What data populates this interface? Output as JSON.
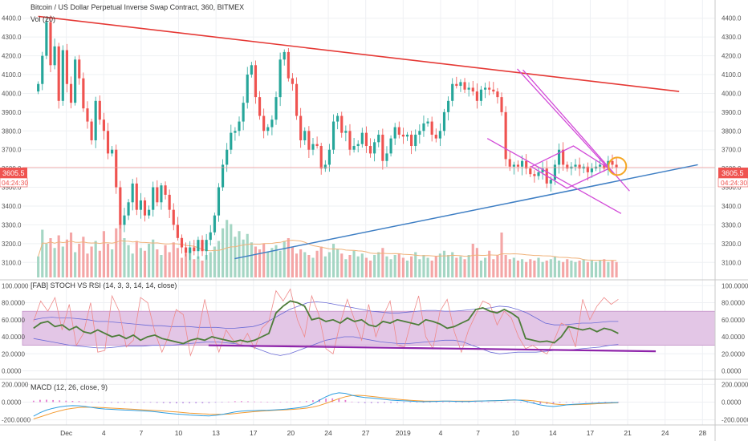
{
  "header": {
    "title": "Bitcoin / US Dollar Perpetual Inverse Swap Contract, 360, BITMEX",
    "volume_label": "Vol (20)"
  },
  "price_badge": {
    "price": "3605.5",
    "countdown": "04:24:30",
    "color": "#ef5350"
  },
  "colors": {
    "up": "#26a69a",
    "down": "#ef5350",
    "vol_up": "#a5d6c4",
    "vol_down": "#f4a6a6",
    "resistance": "#e53935",
    "support": "#3f7fc4",
    "pattern": "#d24bd8",
    "stoch_line": "#4e7d3a",
    "rsi_line": "#ef8a8a",
    "band_line": "#6b6bd6",
    "band_fill": "#e3c6e6",
    "stoch_support": "#8e24aa",
    "macd_line": "#2f9ee0",
    "signal_line": "#f39c34",
    "highlight": "#f5a623"
  },
  "x_axis": {
    "labels": [
      {
        "t": 3,
        "label": "Dec"
      },
      {
        "t": 7,
        "label": "4"
      },
      {
        "t": 11,
        "label": "7"
      },
      {
        "t": 15,
        "label": "10"
      },
      {
        "t": 19,
        "label": "13"
      },
      {
        "t": 23,
        "label": "17"
      },
      {
        "t": 27,
        "label": "20"
      },
      {
        "t": 31,
        "label": "24"
      },
      {
        "t": 35,
        "label": "27"
      },
      {
        "t": 39,
        "label": "2019"
      },
      {
        "t": 43,
        "label": "4"
      },
      {
        "t": 47,
        "label": "7"
      },
      {
        "t": 51,
        "label": "10"
      },
      {
        "t": 55,
        "label": "14"
      },
      {
        "t": 59,
        "label": "17"
      },
      {
        "t": 63,
        "label": "21"
      },
      {
        "t": 67,
        "label": "24"
      },
      {
        "t": 71,
        "label": "28"
      }
    ]
  },
  "chart_data": [
    {
      "id": "price",
      "type": "candlestick",
      "title": "Bitcoin / US Dollar Perpetual Inverse Swap Contract, 360, BITMEX",
      "ylim": [
        3020,
        4480
      ],
      "y_ticks": [
        3100,
        3200,
        3300,
        3400,
        3500,
        3600,
        3700,
        3800,
        3900,
        4000,
        4100,
        4200,
        4300,
        4400
      ],
      "y_tick_labels": [
        "3100.0",
        "3200.0",
        "3300.0",
        "3400.0",
        "3500.0",
        "3600.0",
        "3700.0",
        "3800.0",
        "3900.0",
        "4000.0",
        "4100.0",
        "4200.0",
        "4300.0",
        "4400.0"
      ],
      "closes": [
        4050,
        4200,
        4380,
        4150,
        4250,
        3960,
        4230,
        4050,
        3950,
        4180,
        4080,
        3920,
        3850,
        3750,
        3960,
        3860,
        3800,
        3680,
        3700,
        3500,
        3300,
        3350,
        3420,
        3520,
        3380,
        3430,
        3350,
        3380,
        3500,
        3420,
        3510,
        3460,
        3380,
        3300,
        3230,
        3180,
        3150,
        3180,
        3160,
        3220,
        3160,
        3220,
        3260,
        3350,
        3500,
        3620,
        3700,
        3790,
        3800,
        3850,
        3950,
        4100,
        4150,
        3980,
        3880,
        3800,
        3820,
        3860,
        3980,
        4180,
        4220,
        4080,
        4050,
        3880,
        3750,
        3800,
        3700,
        3730,
        3720,
        3600,
        3620,
        3700,
        3850,
        3880,
        3790,
        3800,
        3700,
        3720,
        3730,
        3790,
        3720,
        3680,
        3740,
        3780,
        3640,
        3680,
        3760,
        3820,
        3780,
        3770,
        3780,
        3720,
        3780,
        3800,
        3840,
        3850,
        3780,
        3760,
        3800,
        3900,
        3960,
        4050,
        4040,
        4060,
        4020,
        4030,
        4010,
        3960,
        4020,
        4030,
        4020,
        4010,
        3980,
        3900,
        3650,
        3610,
        3620,
        3610,
        3640,
        3600,
        3570,
        3560,
        3580,
        3600,
        3520,
        3540,
        3620,
        3700,
        3620,
        3600,
        3610,
        3620,
        3600,
        3610,
        3580,
        3600,
        3610,
        3620,
        3600,
        3640,
        3620,
        3605
      ],
      "volumes": [
        15,
        34,
        24,
        28,
        21,
        30,
        22,
        27,
        32,
        18,
        24,
        29,
        17,
        22,
        26,
        19,
        33,
        24,
        20,
        35,
        38,
        28,
        23,
        17,
        26,
        21,
        19,
        24,
        27,
        20,
        16,
        23,
        18,
        25,
        21,
        14,
        17,
        19,
        13,
        15,
        12,
        16,
        18,
        22,
        26,
        35,
        41,
        38,
        29,
        33,
        27,
        31,
        25,
        22,
        20,
        24,
        18,
        21,
        23,
        19,
        26,
        28,
        22,
        17,
        20,
        18,
        16,
        14,
        19,
        22,
        15,
        18,
        24,
        20,
        17,
        13,
        16,
        19,
        15,
        17,
        14,
        12,
        16,
        18,
        21,
        15,
        13,
        16,
        17,
        14,
        12,
        15,
        18,
        13,
        16,
        14,
        12,
        15,
        17,
        19,
        16,
        18,
        14,
        15,
        13,
        16,
        24,
        21,
        12,
        14,
        19,
        13,
        16,
        32,
        16,
        13,
        14,
        12,
        13,
        11,
        13,
        12,
        14,
        11,
        12,
        13,
        15,
        12,
        11,
        13,
        12,
        11,
        12,
        13,
        11,
        12,
        11,
        12,
        13,
        11,
        12,
        11
      ],
      "volume_scale_max": 40,
      "annotations": {
        "resistance_line": [
          {
            "t": 0,
            "y": 4410
          },
          {
            "t": 68.5,
            "y": 4010
          }
        ],
        "support_line": [
          {
            "t": 21,
            "y": 3120
          },
          {
            "t": 70.5,
            "y": 3620
          }
        ],
        "channel_upper": [
          {
            "t": 51.2,
            "y": 4130
          },
          {
            "t": 61.5,
            "y": 3570
          }
        ],
        "channel_lower": [
          {
            "t": 48,
            "y": 3760
          },
          {
            "t": 62.3,
            "y": 3360
          }
        ],
        "wedge_upper": [
          {
            "t": 51.8,
            "y": 4125
          },
          {
            "t": 63.2,
            "y": 3480
          }
        ],
        "rhombus": [
          {
            "t": 52.7,
            "y": 3610
          },
          {
            "t": 57.2,
            "y": 3720
          },
          {
            "t": 61,
            "y": 3600
          },
          {
            "t": 56.5,
            "y": 3495
          }
        ],
        "highlight_circle": {
          "t": 61.9,
          "y": 3612
        }
      }
    },
    {
      "id": "stoch_rsi",
      "type": "line",
      "title": "[FAB] STOCH VS RSI (14, 3, 3, 14, 14, close)",
      "ylim": [
        -7,
        104
      ],
      "y_ticks": [
        0,
        20,
        40,
        60,
        80,
        100
      ],
      "y_tick_labels": [
        "0.0000",
        "20.0000",
        "40.0000",
        "60.0000",
        "80.0000",
        "100.0000"
      ],
      "band": [
        30,
        70
      ],
      "series": [
        {
          "name": "stoch",
          "values": [
            50,
            56,
            58,
            52,
            54,
            48,
            52,
            46,
            44,
            48,
            44,
            40,
            42,
            38,
            42,
            36,
            40,
            42,
            38,
            36,
            34,
            32,
            36,
            38,
            36,
            40,
            38,
            36,
            34,
            36,
            34,
            36,
            40,
            44,
            68,
            76,
            82,
            80,
            76,
            60,
            62,
            58,
            60,
            56,
            62,
            58,
            60,
            54,
            52,
            58,
            56,
            60,
            58,
            56,
            54,
            60,
            58,
            55,
            50,
            52,
            56,
            60,
            72,
            74,
            70,
            68,
            72,
            68,
            62,
            38,
            36,
            34,
            35,
            33,
            40,
            52,
            50,
            48,
            50,
            46,
            50,
            48,
            44
          ]
        },
        {
          "name": "rsi",
          "values": [
            58,
            82,
            70,
            86,
            48,
            78,
            30,
            44,
            80,
            22,
            24,
            88,
            70,
            28,
            36,
            86,
            80,
            46,
            22,
            42,
            72,
            66,
            18,
            40,
            84,
            46,
            22,
            48,
            36,
            30,
            44,
            26,
            50,
            58,
            94,
            82,
            96,
            60,
            40,
            88,
            66,
            26,
            20,
            56,
            84,
            60,
            36,
            78,
            40,
            64,
            82,
            30,
            28,
            60,
            88,
            40,
            26,
            70,
            84,
            46,
            22,
            48,
            66,
            82,
            78,
            54,
            70,
            62,
            40,
            26,
            30,
            24,
            20,
            36,
            56,
            52,
            28,
            84,
            60,
            76,
            86,
            78,
            84
          ]
        },
        {
          "name": "upper_band",
          "values": [
            60,
            62,
            63,
            62,
            62,
            61,
            60,
            58,
            58,
            57,
            56,
            55,
            54,
            53,
            53,
            52,
            52,
            52,
            51,
            51,
            51,
            50,
            50,
            51,
            52,
            55,
            60,
            66,
            72,
            76,
            80,
            81,
            80,
            78,
            76,
            74,
            72,
            70,
            69,
            68,
            68,
            69,
            70,
            71,
            71,
            70,
            70,
            71,
            72,
            73,
            74,
            76,
            75,
            72,
            68,
            62,
            56,
            54,
            54,
            55,
            56,
            56,
            57,
            58,
            58
          ]
        },
        {
          "name": "lower_band",
          "values": [
            38,
            36,
            34,
            32,
            30,
            29,
            28,
            27,
            27,
            28,
            29,
            29,
            29,
            30,
            30,
            30,
            31,
            32,
            33,
            34,
            34,
            33,
            32,
            30,
            28,
            24,
            20,
            18,
            20,
            24,
            28,
            32,
            36,
            38,
            40,
            40,
            38,
            36,
            34,
            33,
            32,
            32,
            33,
            34,
            35,
            36,
            36,
            34,
            30,
            26,
            22,
            20,
            21,
            22,
            22,
            22,
            23,
            24,
            24,
            25,
            26,
            27,
            28,
            30,
            31
          ]
        },
        {
          "name": "support_line",
          "values": [
            30,
            23
          ]
        }
      ]
    },
    {
      "id": "macd",
      "type": "line",
      "title": "MACD (12, 26, close, 9)",
      "ylim": [
        -240,
        230
      ],
      "y_ticks": [
        -200,
        0,
        200
      ],
      "y_tick_labels": [
        "-200.0000",
        "0.0000",
        "200.0000"
      ],
      "series": [
        {
          "name": "macd",
          "values": [
            -160,
            -120,
            -90,
            -70,
            -55,
            -45,
            -40,
            -42,
            -50,
            -62,
            -72,
            -78,
            -82,
            -86,
            -90,
            -92,
            -96,
            -100,
            -104,
            -112,
            -120,
            -128,
            -135,
            -140,
            -146,
            -150,
            -154,
            -156,
            -150,
            -140,
            -126,
            -112,
            -102,
            -98,
            -96,
            -94,
            -92,
            -88,
            -84,
            -78,
            -70,
            -62,
            -48,
            -20,
            20,
            60,
            90,
            104,
            98,
            76,
            62,
            52,
            46,
            38,
            30,
            22,
            18,
            14,
            10,
            6,
            4,
            6,
            8,
            10,
            10,
            8,
            6,
            6,
            10,
            12,
            14,
            16,
            18,
            22,
            24,
            20,
            6,
            -14,
            -32,
            -44,
            -50,
            -42,
            -32,
            -26,
            -22,
            -18,
            -14,
            -10,
            -8,
            -6,
            -4
          ]
        },
        {
          "name": "signal",
          "values": [
            -190,
            -168,
            -144,
            -120,
            -100,
            -82,
            -70,
            -62,
            -58,
            -58,
            -60,
            -64,
            -68,
            -72,
            -76,
            -80,
            -84,
            -88,
            -92,
            -96,
            -100,
            -106,
            -112,
            -118,
            -124,
            -128,
            -132,
            -136,
            -138,
            -138,
            -136,
            -130,
            -122,
            -114,
            -108,
            -102,
            -98,
            -94,
            -90,
            -86,
            -82,
            -76,
            -68,
            -56,
            -38,
            -14,
            12,
            38,
            60,
            74,
            76,
            72,
            64,
            56,
            48,
            40,
            32,
            26,
            20,
            16,
            12,
            10,
            10,
            10,
            10,
            10,
            10,
            10,
            10,
            12,
            14,
            16,
            18,
            20,
            22,
            22,
            20,
            14,
            4,
            -8,
            -20,
            -28,
            -30,
            -30,
            -28,
            -26,
            -22,
            -18,
            -14,
            -10,
            -8
          ]
        },
        {
          "name": "histogram",
          "values": [
            26,
            42,
            44,
            38,
            32,
            26,
            22,
            18,
            10,
            0,
            -8,
            -12,
            -12,
            -12,
            -12,
            -10,
            -10,
            -10,
            -10,
            -14,
            -18,
            -20,
            -22,
            -20,
            -20,
            -20,
            -20,
            -18,
            -10,
            -2,
            8,
            16,
            18,
            14,
            10,
            8,
            6,
            6,
            6,
            8,
            10,
            12,
            18,
            34,
            52,
            66,
            70,
            60,
            38,
            8,
            -12,
            -18,
            -18,
            -16,
            -16,
            -16,
            -14,
            -12,
            -10,
            -8,
            -6,
            -4,
            -2,
            0,
            0,
            -2,
            -4,
            -4,
            0,
            0,
            0,
            0,
            0,
            2,
            2,
            -2,
            -12,
            -26,
            -34,
            -34,
            -28,
            -14,
            -2,
            6,
            8,
            8,
            8,
            8,
            6,
            4,
            4
          ]
        }
      ]
    }
  ]
}
